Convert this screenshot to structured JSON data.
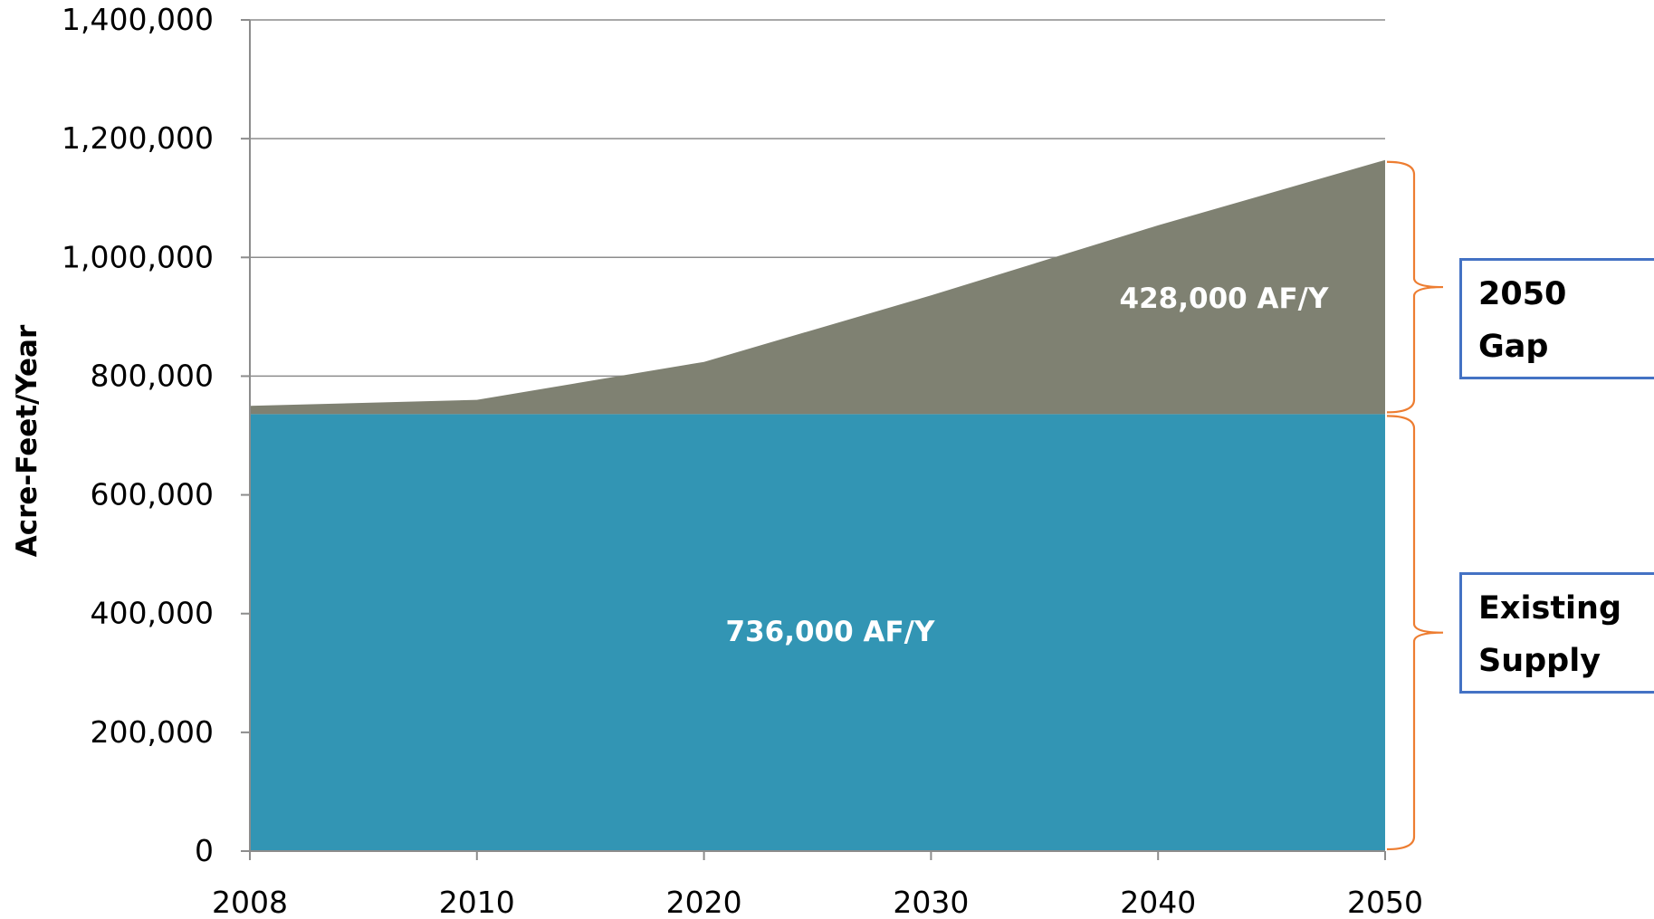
{
  "chart_data": {
    "type": "area",
    "x": [
      2008,
      2010,
      2020,
      2030,
      2040,
      2050
    ],
    "series": [
      {
        "name": "Existing Supply",
        "values": [
          736000,
          736000,
          736000,
          736000,
          736000,
          736000
        ],
        "color": "#3295b4"
      },
      {
        "name": "2050 Gap",
        "values": [
          14000,
          24000,
          88000,
          200000,
          318000,
          428000
        ],
        "color": "#7f8172"
      }
    ],
    "stacked": true,
    "ylabel": "Acre-Feet/Year",
    "xlabel": "",
    "ylim": [
      0,
      1400000
    ],
    "yticks": [
      0,
      200000,
      400000,
      600000,
      800000,
      1000000,
      1200000,
      1400000
    ],
    "ytick_labels": [
      "0",
      "200,000",
      "400,000",
      "600,000",
      "800,000",
      "1,000,000",
      "1,200,000",
      "1,400,000"
    ],
    "xtick_labels": [
      "2008",
      "2010",
      "2020",
      "2030",
      "2040",
      "2050"
    ],
    "grid": "horizontal",
    "annotations": {
      "supply_label": "736,000 AF/Y",
      "gap_label": "428,000 AF/Y"
    },
    "bracket_color": "#ed7d31"
  },
  "legend_boxes": {
    "gap": {
      "line1": "2050",
      "line2": "Gap"
    },
    "supply": {
      "line1": "Existing",
      "line2": "Supply"
    }
  }
}
